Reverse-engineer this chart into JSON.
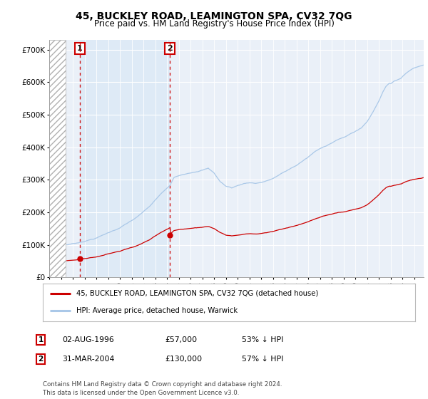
{
  "title": "45, BUCKLEY ROAD, LEAMINGTON SPA, CV32 7QG",
  "subtitle": "Price paid vs. HM Land Registry's House Price Index (HPI)",
  "legend_line1": "45, BUCKLEY ROAD, LEAMINGTON SPA, CV32 7QG (detached house)",
  "legend_line2": "HPI: Average price, detached house, Warwick",
  "footnote": "Contains HM Land Registry data © Crown copyright and database right 2024.\nThis data is licensed under the Open Government Licence v3.0.",
  "table": [
    {
      "num": "1",
      "date": "02-AUG-1996",
      "price": "£57,000",
      "hpi": "53% ↓ HPI"
    },
    {
      "num": "2",
      "date": "31-MAR-2004",
      "price": "£130,000",
      "hpi": "57% ↓ HPI"
    }
  ],
  "sale1_year": 1996.58,
  "sale1_price": 57000,
  "sale2_year": 2004.25,
  "sale2_price": 130000,
  "hpi_color": "#aac8e8",
  "hpi_fill_color": "#ddeaf6",
  "sale_color": "#cc0000",
  "dashed_color": "#cc0000",
  "bg_plot": "#eaf0f8",
  "bg_hatch": "#ffffff",
  "bg_figure": "#ffffff",
  "ylim": [
    0,
    730000
  ],
  "xlim_start": 1994.0,
  "xlim_end": 2025.8,
  "hatch_end": 1995.42
}
